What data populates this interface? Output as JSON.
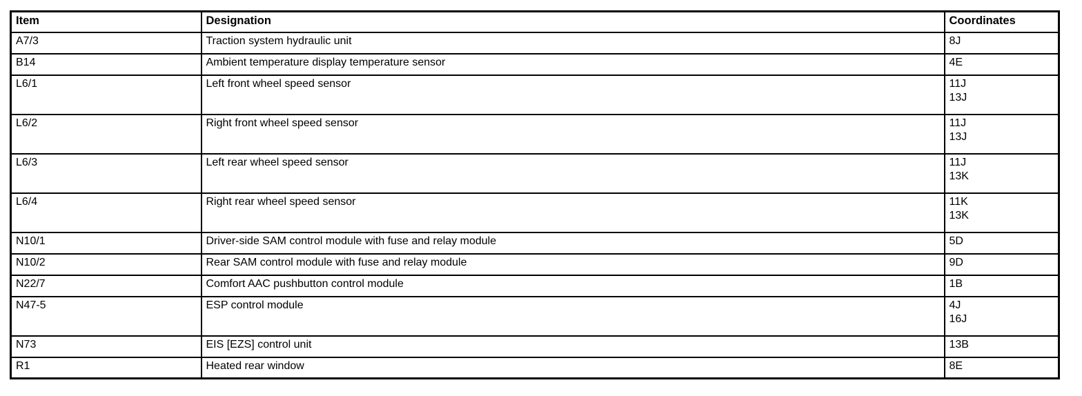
{
  "page": {
    "background_color": "#ffffff",
    "text_color": "#000000"
  },
  "table": {
    "columns": [
      {
        "key": "item",
        "label": "Item"
      },
      {
        "key": "designation",
        "label": "Designation"
      },
      {
        "key": "coordinates",
        "label": "Coordinates"
      }
    ],
    "rows": [
      {
        "item": "A7/3",
        "designation": "Traction system hydraulic unit",
        "coordinates": [
          "8J"
        ]
      },
      {
        "item": "B14",
        "designation": "Ambient temperature display temperature sensor",
        "coordinates": [
          "4E"
        ]
      },
      {
        "item": "L6/1",
        "designation": "Left front wheel speed sensor",
        "coordinates": [
          "11J",
          "13J"
        ]
      },
      {
        "item": "L6/2",
        "designation": "Right front wheel speed sensor",
        "coordinates": [
          "11J",
          "13J"
        ]
      },
      {
        "item": "L6/3",
        "designation": "Left rear wheel speed sensor",
        "coordinates": [
          "11J",
          "13K"
        ]
      },
      {
        "item": "L6/4",
        "designation": "Right rear wheel speed sensor",
        "coordinates": [
          "11K",
          "13K"
        ]
      },
      {
        "item": "N10/1",
        "designation": "Driver-side SAM control module with fuse and relay module",
        "coordinates": [
          "5D"
        ]
      },
      {
        "item": "N10/2",
        "designation": "Rear SAM control module with fuse and relay module",
        "coordinates": [
          "9D"
        ]
      },
      {
        "item": "N22/7",
        "designation": "Comfort AAC pushbutton control module",
        "coordinates": [
          "1B"
        ]
      },
      {
        "item": "N47-5",
        "designation": "ESP control module",
        "coordinates": [
          "4J",
          "16J"
        ]
      },
      {
        "item": "N73",
        "designation": "EIS [EZS] control unit",
        "coordinates": [
          "13B"
        ]
      },
      {
        "item": "R1",
        "designation": "Heated rear window",
        "coordinates": [
          "8E"
        ]
      }
    ]
  }
}
